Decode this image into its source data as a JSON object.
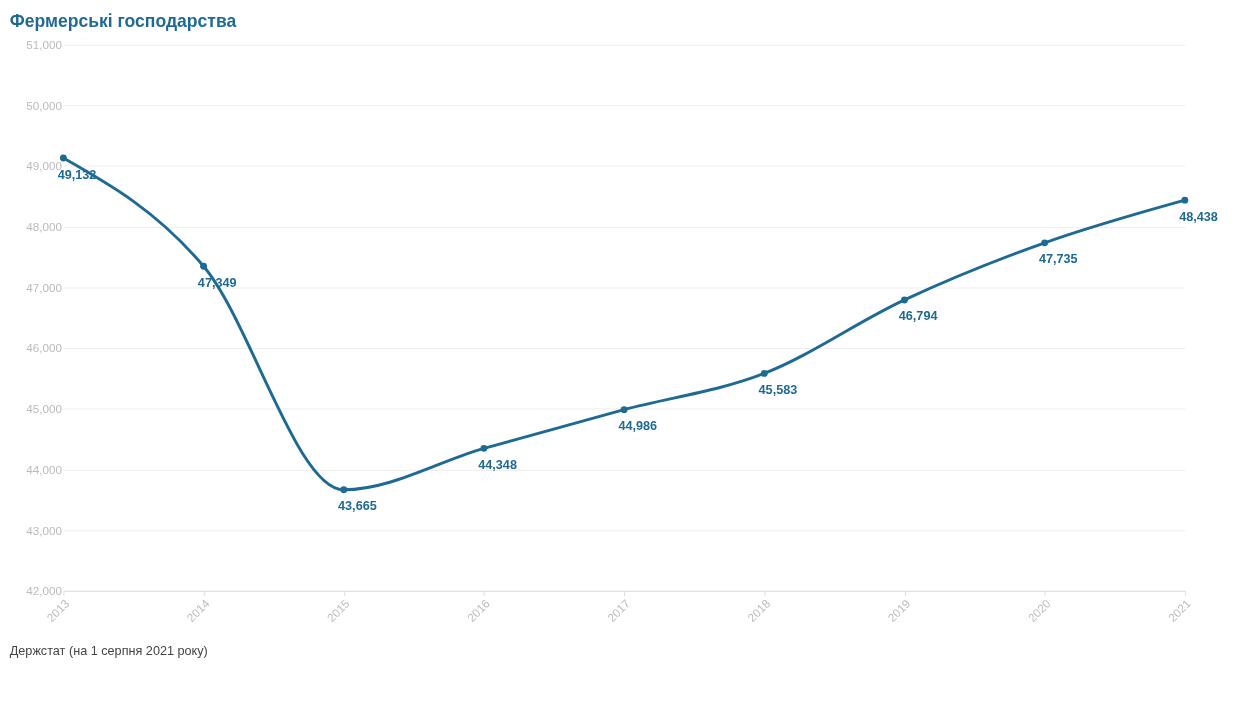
{
  "chart_data": {
    "type": "line",
    "title": "Фермерські господарства",
    "x": [
      2013,
      2014,
      2015,
      2016,
      2017,
      2018,
      2019,
      2020,
      2021
    ],
    "series": [
      {
        "color": "#1f6a93",
        "values": [
          49132,
          47349,
          43665,
          44348,
          44986,
          45583,
          46794,
          47735,
          48438
        ],
        "value_labels": [
          "49,132",
          "47,349",
          "43,665",
          "44,348",
          "44,986",
          "45,583",
          "46,794",
          "47,735",
          "48,438"
        ]
      }
    ],
    "xlim": [
      2013,
      2021
    ],
    "xticks": [
      2013,
      2014,
      2015,
      2016,
      2017,
      2018,
      2019,
      2020,
      2021
    ],
    "ylim": [
      42000,
      51000
    ],
    "yticks": [
      {
        "value": 42000,
        "label": "42,000"
      },
      {
        "value": 43000,
        "label": "43,000"
      },
      {
        "value": 44000,
        "label": "44,000"
      },
      {
        "value": 45000,
        "label": "45,000"
      },
      {
        "value": 46000,
        "label": "46,000"
      },
      {
        "value": 47000,
        "label": "47,000"
      },
      {
        "value": 48000,
        "label": "48,000"
      },
      {
        "value": 49000,
        "label": "49,000"
      },
      {
        "value": 50000,
        "label": "50,000"
      },
      {
        "value": 51000,
        "label": "51,000"
      }
    ],
    "grid": "y",
    "marker": "circle",
    "line_style": "solid",
    "annotations": [
      "Держстат (на 1 серпня 2021 року)"
    ]
  }
}
